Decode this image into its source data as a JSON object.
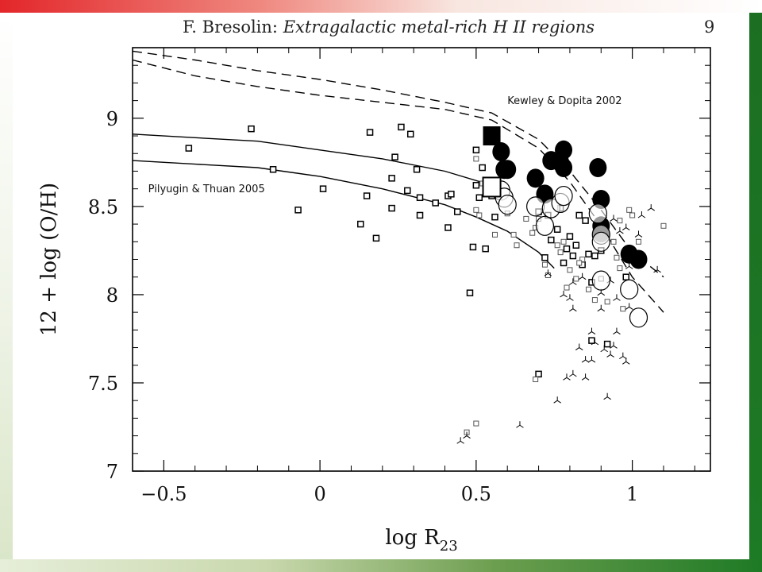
{
  "header": {
    "author": "F. Bresolin:",
    "title": "Extragalactic metal-rich H II regions",
    "page_number": "9"
  },
  "colors": {
    "frame_top": "#e3262a",
    "frame_right": "#1d7a25",
    "frame_bottom": "#1e7a25",
    "ink": "#000000"
  },
  "chart_data": {
    "type": "scatter",
    "xlabel_main": "log R",
    "xlabel_sub": "23",
    "ylabel": "12 + log (O/H)",
    "xlim": [
      -0.6,
      1.25
    ],
    "ylim": [
      7.0,
      9.4
    ],
    "x_ticks": [
      -0.5,
      0,
      0.5,
      1
    ],
    "x_tick_labels": [
      "−0.5",
      "0",
      "0.5",
      "1"
    ],
    "y_ticks": [
      7,
      7.5,
      8,
      8.5,
      9
    ],
    "y_tick_labels": [
      "7",
      "7.5",
      "8",
      "8.5",
      "9"
    ],
    "grid": false,
    "annotations": [
      {
        "text": "Kewley & Dopita 2002",
        "x": 0.6,
        "y": 9.08
      },
      {
        "text": "Pilyugin & Thuan 2005",
        "x": -0.55,
        "y": 8.58
      }
    ],
    "curves": [
      {
        "name": "Kewley & Dopita 2002",
        "style": "dashed",
        "x": [
          -0.6,
          -0.4,
          -0.2,
          0.0,
          0.2,
          0.4,
          0.55,
          0.7,
          0.8,
          0.9,
          1.0,
          1.1
        ],
        "y": [
          9.38,
          9.33,
          9.27,
          9.22,
          9.16,
          9.09,
          9.03,
          8.88,
          8.7,
          8.48,
          8.24,
          8.1
        ]
      },
      {
        "name": "Kewley & Dopita 2002",
        "style": "dashed",
        "x": [
          -0.6,
          -0.4,
          -0.2,
          0.0,
          0.2,
          0.4,
          0.55,
          0.7,
          0.8,
          0.9,
          1.0,
          1.1
        ],
        "y": [
          9.33,
          9.24,
          9.18,
          9.13,
          9.09,
          9.05,
          8.99,
          8.83,
          8.64,
          8.39,
          8.1,
          7.9
        ]
      },
      {
        "name": "Pilyugin & Thuan 2005",
        "style": "solid",
        "x": [
          -0.6,
          -0.4,
          -0.2,
          0.0,
          0.2,
          0.4,
          0.55
        ],
        "y": [
          8.91,
          8.89,
          8.87,
          8.82,
          8.77,
          8.7,
          8.62
        ]
      },
      {
        "name": "Pilyugin & Thuan 2005",
        "style": "solid",
        "x": [
          -0.6,
          -0.4,
          -0.2,
          0.0,
          0.2,
          0.4,
          0.5,
          0.6,
          0.7,
          0.75
        ],
        "y": [
          8.76,
          8.74,
          8.72,
          8.67,
          8.6,
          8.51,
          8.44,
          8.36,
          8.24,
          8.15
        ]
      }
    ],
    "series": [
      {
        "marker": "small-open-square",
        "points": [
          [
            -0.42,
            8.83
          ],
          [
            -0.22,
            8.94
          ],
          [
            -0.15,
            8.71
          ],
          [
            -0.07,
            8.48
          ],
          [
            0.01,
            8.6
          ],
          [
            0.13,
            8.4
          ],
          [
            0.15,
            8.56
          ],
          [
            0.16,
            8.92
          ],
          [
            0.18,
            8.32
          ],
          [
            0.23,
            8.49
          ],
          [
            0.23,
            8.66
          ],
          [
            0.24,
            8.78
          ],
          [
            0.26,
            8.95
          ],
          [
            0.28,
            8.59
          ],
          [
            0.29,
            8.91
          ],
          [
            0.31,
            8.71
          ],
          [
            0.32,
            8.45
          ],
          [
            0.32,
            8.55
          ],
          [
            0.37,
            8.52
          ],
          [
            0.41,
            8.38
          ],
          [
            0.41,
            8.56
          ],
          [
            0.42,
            8.57
          ],
          [
            0.44,
            8.47
          ],
          [
            0.48,
            8.01
          ],
          [
            0.49,
            8.27
          ],
          [
            0.5,
            8.62
          ],
          [
            0.5,
            8.82
          ],
          [
            0.51,
            8.55
          ],
          [
            0.52,
            8.72
          ],
          [
            0.53,
            8.26
          ],
          [
            0.55,
            8.56
          ],
          [
            0.56,
            8.44
          ],
          [
            0.57,
            8.63
          ],
          [
            0.7,
            8.47
          ],
          [
            0.72,
            8.21
          ],
          [
            0.73,
            8.45
          ],
          [
            0.74,
            8.31
          ],
          [
            0.76,
            8.37
          ],
          [
            0.77,
            8.49
          ],
          [
            0.78,
            8.18
          ],
          [
            0.79,
            8.26
          ],
          [
            0.8,
            8.33
          ],
          [
            0.81,
            8.22
          ],
          [
            0.82,
            8.28
          ],
          [
            0.83,
            8.45
          ],
          [
            0.84,
            8.17
          ],
          [
            0.85,
            8.42
          ],
          [
            0.86,
            8.23
          ],
          [
            0.87,
            8.07
          ],
          [
            0.88,
            8.22
          ],
          [
            0.89,
            8.35
          ],
          [
            0.9,
            8.25
          ],
          [
            0.92,
            7.72
          ],
          [
            0.7,
            7.55
          ],
          [
            0.87,
            7.74
          ],
          [
            0.98,
            8.1
          ]
        ]
      },
      {
        "marker": "tiny-open-square",
        "points": [
          [
            0.5,
            8.77
          ],
          [
            0.5,
            8.48
          ],
          [
            0.51,
            8.45
          ],
          [
            0.52,
            8.63
          ],
          [
            0.54,
            8.62
          ],
          [
            0.56,
            8.34
          ],
          [
            0.6,
            8.46
          ],
          [
            0.62,
            8.34
          ],
          [
            0.63,
            8.28
          ],
          [
            0.66,
            8.43
          ],
          [
            0.68,
            8.35
          ],
          [
            0.69,
            8.38
          ],
          [
            0.7,
            8.43
          ],
          [
            0.72,
            8.17
          ],
          [
            0.73,
            8.11
          ],
          [
            0.76,
            8.28
          ],
          [
            0.77,
            8.24
          ],
          [
            0.78,
            8.3
          ],
          [
            0.79,
            8.04
          ],
          [
            0.8,
            8.14
          ],
          [
            0.82,
            8.09
          ],
          [
            0.84,
            8.2
          ],
          [
            0.86,
            8.03
          ],
          [
            0.88,
            7.97
          ],
          [
            0.9,
            8.09
          ],
          [
            0.92,
            7.96
          ],
          [
            0.94,
            8.3
          ],
          [
            0.95,
            8.21
          ],
          [
            0.96,
            8.42
          ],
          [
            0.97,
            7.92
          ],
          [
            0.99,
            8.48
          ],
          [
            1.0,
            8.45
          ],
          [
            1.02,
            8.3
          ],
          [
            1.1,
            8.39
          ],
          [
            0.69,
            7.52
          ],
          [
            0.47,
            7.22
          ],
          [
            0.5,
            7.27
          ],
          [
            0.83,
            8.18
          ],
          [
            0.9,
            8.41
          ],
          [
            0.96,
            8.15
          ]
        ]
      },
      {
        "marker": "tripod",
        "points": [
          [
            0.45,
            7.17
          ],
          [
            0.47,
            7.2
          ],
          [
            0.64,
            7.26
          ],
          [
            0.76,
            7.4
          ],
          [
            0.79,
            7.53
          ],
          [
            0.81,
            7.55
          ],
          [
            0.85,
            7.53
          ],
          [
            0.83,
            7.7
          ],
          [
            0.85,
            7.63
          ],
          [
            0.87,
            7.63
          ],
          [
            0.88,
            7.73
          ],
          [
            0.91,
            7.69
          ],
          [
            0.93,
            7.66
          ],
          [
            0.94,
            7.71
          ],
          [
            0.95,
            7.79
          ],
          [
            0.97,
            7.65
          ],
          [
            0.98,
            7.62
          ],
          [
            0.99,
            7.93
          ],
          [
            0.92,
            7.42
          ],
          [
            0.95,
            7.98
          ],
          [
            0.9,
            7.92
          ],
          [
            0.87,
            7.79
          ],
          [
            0.81,
            7.92
          ],
          [
            0.8,
            7.98
          ],
          [
            0.78,
            8.0
          ],
          [
            0.81,
            8.07
          ],
          [
            0.73,
            8.12
          ],
          [
            0.84,
            8.1
          ],
          [
            0.91,
            8.4
          ],
          [
            0.94,
            8.43
          ],
          [
            0.96,
            8.36
          ],
          [
            0.98,
            8.38
          ],
          [
            1.03,
            8.45
          ],
          [
            1.06,
            8.49
          ],
          [
            1.02,
            8.2
          ],
          [
            1.08,
            8.14
          ],
          [
            0.93,
            8.08
          ],
          [
            0.9,
            8.01
          ],
          [
            0.99,
            8.16
          ],
          [
            1.02,
            8.34
          ]
        ]
      },
      {
        "marker": "large-filled-circle",
        "points": [
          [
            0.58,
            8.81
          ],
          [
            0.59,
            8.71
          ],
          [
            0.6,
            8.71
          ],
          [
            0.69,
            8.66
          ],
          [
            0.72,
            8.57
          ],
          [
            0.74,
            8.76
          ],
          [
            0.77,
            8.75
          ],
          [
            0.78,
            8.82
          ],
          [
            0.78,
            8.72
          ],
          [
            0.89,
            8.72
          ],
          [
            0.9,
            8.54
          ],
          [
            0.9,
            8.39
          ],
          [
            0.9,
            8.35
          ],
          [
            0.99,
            8.23
          ],
          [
            1.02,
            8.2
          ]
        ]
      },
      {
        "marker": "large-open-circle",
        "points": [
          [
            0.58,
            8.59
          ],
          [
            0.59,
            8.55
          ],
          [
            0.6,
            8.51
          ],
          [
            0.69,
            8.5
          ],
          [
            0.72,
            8.39
          ],
          [
            0.74,
            8.49
          ],
          [
            0.77,
            8.52
          ],
          [
            0.78,
            8.56
          ],
          [
            0.89,
            8.46
          ],
          [
            0.9,
            8.34
          ],
          [
            0.9,
            8.3
          ],
          [
            0.9,
            8.08
          ],
          [
            0.99,
            8.03
          ],
          [
            1.02,
            7.87
          ]
        ]
      },
      {
        "marker": "large-filled-square",
        "points": [
          [
            0.55,
            8.9
          ]
        ]
      },
      {
        "marker": "large-open-square",
        "points": [
          [
            0.55,
            8.61
          ]
        ]
      }
    ]
  }
}
